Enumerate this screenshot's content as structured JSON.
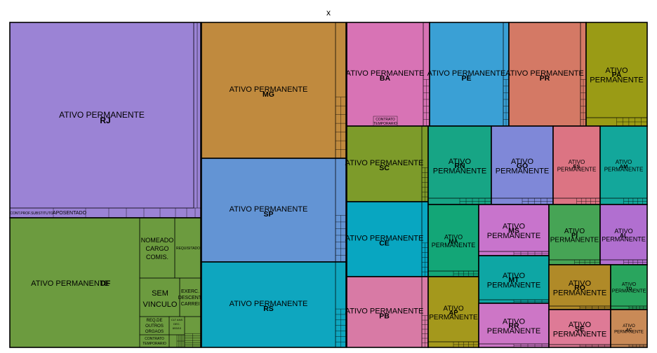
{
  "chart_data": {
    "type": "treemap",
    "title": "x",
    "value_label_note": "",
    "states": [
      {
        "name": "RJ",
        "value": 19.1,
        "color": "#9b83d5",
        "subgroups": [
          {
            "label": "ATIVO PERMANENTE",
            "value": 17.9
          },
          {
            "label": "CONT.PROF.SUBSTITUTO",
            "value": 0.42
          },
          {
            "label": "APOSENTADO",
            "value": 0.32
          },
          {
            "label": "",
            "value": 0.46
          }
        ]
      },
      {
        "name": "DF",
        "value": 10.3,
        "color": "#6c9b3f",
        "subgroups": [
          {
            "label": "ATIVO PERMANENTE",
            "value": 7.1
          },
          {
            "label": "NOMEADO CARGO COMIS.",
            "value": 1.4
          },
          {
            "label": "REQUISITADO",
            "value": 0.55
          },
          {
            "label": "SEM VINCULO",
            "value": 0.62
          },
          {
            "label": "EXERC. DESCENT. CARREI",
            "value": 0.35
          },
          {
            "label": "REQ.DE OUTROS ORGAOS",
            "value": 0.2
          },
          {
            "label": "CLT ANS DEC. 693/10",
            "value": 0.06
          },
          {
            "label": "CONTRATO TEMPORARIO",
            "value": 0.07
          }
        ]
      },
      {
        "name": "MG",
        "value": 10.5,
        "color": "#c08a3e",
        "subgroups": [
          {
            "label": "ATIVO PERMANENTE",
            "value": 9.8
          }
        ]
      },
      {
        "name": "SP",
        "value": 8.5,
        "color": "#6394d4",
        "subgroups": [
          {
            "label": "ATIVO PERMANENTE",
            "value": 8.0
          }
        ]
      },
      {
        "name": "RS",
        "value": 7.8,
        "color": "#0ea6bf",
        "subgroups": [
          {
            "label": "ATIVO PERMANENTE",
            "value": 7.3
          }
        ]
      },
      {
        "name": "BA",
        "value": 4.8,
        "color": "#d873b5",
        "subgroups": [
          {
            "label": "ATIVO PERMANENTE",
            "value": 4.2
          },
          {
            "label": "CONTRATO TEMPORARIO",
            "value": 0.15
          }
        ]
      },
      {
        "name": "PE",
        "value": 4.6,
        "color": "#3aa0d5",
        "subgroups": [
          {
            "label": "ATIVO PERMANENTE",
            "value": 4.5
          }
        ]
      },
      {
        "name": "PR",
        "value": 4.3,
        "color": "#d47965",
        "subgroups": [
          {
            "label": "ATIVO PERMANENTE",
            "value": 4.2
          }
        ]
      },
      {
        "name": "PA",
        "value": 3.5,
        "color": "#9a9b15",
        "subgroups": [
          {
            "label": "ATIVO PERMANENTE",
            "value": 3.3
          }
        ]
      },
      {
        "name": "SC",
        "value": 3.4,
        "color": "#7d9b2a",
        "subgroups": [
          {
            "label": "ATIVO PERMANENTE",
            "value": 3.1
          }
        ]
      },
      {
        "name": "CE",
        "value": 3.3,
        "color": "#08a6c1",
        "subgroups": [
          {
            "label": "ATIVO PERMANENTE",
            "value": 3.0
          }
        ]
      },
      {
        "name": "PB",
        "value": 3.2,
        "color": "#d87aa5",
        "subgroups": [
          {
            "label": "ATIVO PERMANENTE",
            "value": 3.1
          }
        ]
      },
      {
        "name": "RN",
        "value": 2.5,
        "color": "#17a585",
        "subgroups": [
          {
            "label": "ATIVO PERMANENTE",
            "value": 2.4
          }
        ]
      },
      {
        "name": "GO",
        "value": 2.3,
        "color": "#7f88d8",
        "subgroups": [
          {
            "label": "ATIVO PERMANENTE",
            "value": 2.2
          }
        ]
      },
      {
        "name": "ES",
        "value": 1.9,
        "color": "#dc7483",
        "subgroups": [
          {
            "label": "ATIVO PERMANENTE",
            "value": 1.8
          }
        ]
      },
      {
        "name": "AM",
        "value": 1.9,
        "color": "#13a79b",
        "subgroups": [
          {
            "label": "ATIVO PERMANENTE",
            "value": 1.8
          }
        ]
      },
      {
        "name": "MA",
        "value": 2.0,
        "color": "#13a677",
        "subgroups": [
          {
            "label": "ATIVO PERMANENTE",
            "value": 1.8
          }
        ]
      },
      {
        "name": "MS",
        "value": 1.9,
        "color": "#c874cc",
        "subgroups": [
          {
            "label": "ATIVO PERMANENTE",
            "value": 1.8
          }
        ]
      },
      {
        "name": "PI",
        "value": 1.7,
        "color": "#46a455",
        "subgroups": [
          {
            "label": "ATIVO PERMANENTE",
            "value": 1.6
          }
        ]
      },
      {
        "name": "AL",
        "value": 1.5,
        "color": "#b16fd0",
        "subgroups": [
          {
            "label": "ATIVO PERMANENTE",
            "value": 1.4
          }
        ]
      },
      {
        "name": "MT",
        "value": 1.8,
        "color": "#0ea6a4",
        "subgroups": [
          {
            "label": "ATIVO PERMANENTE",
            "value": 1.7
          }
        ]
      },
      {
        "name": "AP",
        "value": 1.7,
        "color": "#a4981c",
        "subgroups": [
          {
            "label": "ATIVO PERMANENTE",
            "value": 1.6
          }
        ]
      },
      {
        "name": "RR",
        "value": 1.7,
        "color": "#cd76c6",
        "subgroups": [
          {
            "label": "ATIVO PERMANENTE",
            "value": 1.6
          }
        ]
      },
      {
        "name": "RO",
        "value": 1.4,
        "color": "#b08a28",
        "subgroups": [
          {
            "label": "ATIVO PERMANENTE",
            "value": 1.3
          }
        ]
      },
      {
        "name": "TO",
        "value": 1.0,
        "color": "#29a55e",
        "subgroups": [
          {
            "label": "ATIVO PERMANENTE",
            "value": 0.95
          }
        ]
      },
      {
        "name": "SE",
        "value": 1.2,
        "color": "#de7a96",
        "subgroups": [
          {
            "label": "ATIVO PERMANENTE",
            "value": 1.1
          }
        ]
      },
      {
        "name": "AC",
        "value": 0.8,
        "color": "#c98a57",
        "subgroups": [
          {
            "label": "ATIVO PERMANENTE",
            "value": 0.75
          }
        ]
      }
    ]
  }
}
